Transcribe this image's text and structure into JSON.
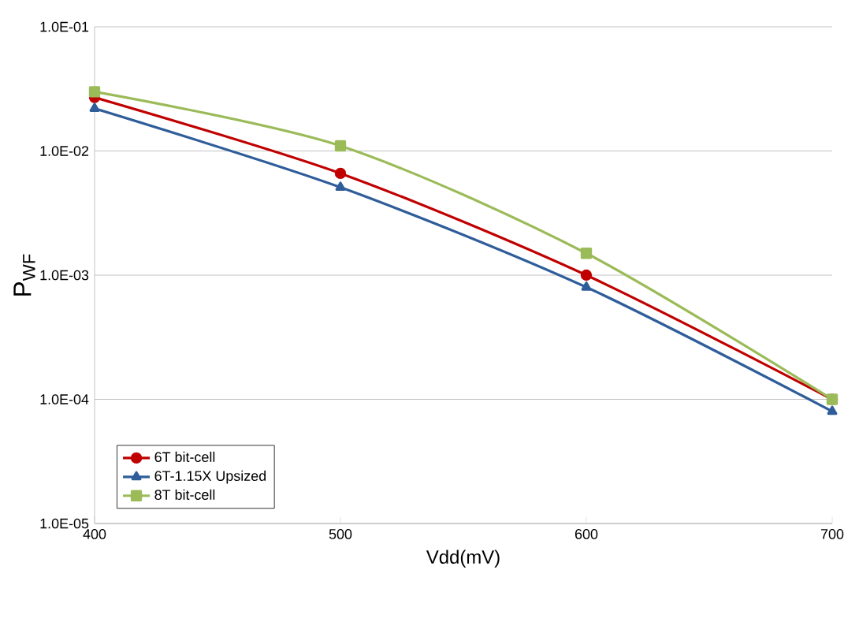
{
  "chart_data": {
    "type": "line",
    "xlabel": "Vdd(mV)",
    "ylabel": "P$_{WF}$",
    "log": "y",
    "grid": "y",
    "legend": "bottom left",
    "line_style": "solid",
    "x": [
      400,
      500,
      600,
      700
    ],
    "xlim": [
      400,
      700
    ],
    "xticks": [
      400,
      500,
      600,
      700
    ],
    "ylim": [
      1e-05,
      0.1
    ],
    "yticks": [
      {
        "value": 1e-05,
        "label": "1.0E-05"
      },
      {
        "value": 0.0001,
        "label": "1.0E-04"
      },
      {
        "value": 0.001,
        "label": "1.0E-03"
      },
      {
        "value": 0.01,
        "label": "1.0E-02"
      },
      {
        "value": 0.1,
        "label": "1.0E-01"
      }
    ],
    "series": [
      {
        "name": "6T bit-cell",
        "color": "#c00000",
        "marker": "circle",
        "values": [
          0.027,
          0.0066,
          0.001,
          0.0001
        ]
      },
      {
        "name": "6T-1.15X Upsized",
        "color": "#2f5d9a",
        "marker": "triangle",
        "values": [
          0.022,
          0.0051,
          0.0008,
          8e-05
        ]
      },
      {
        "name": "8T bit-cell",
        "color": "#9bbb59",
        "marker": "square",
        "values": [
          0.03,
          0.011,
          0.0015,
          0.0001
        ]
      }
    ]
  }
}
